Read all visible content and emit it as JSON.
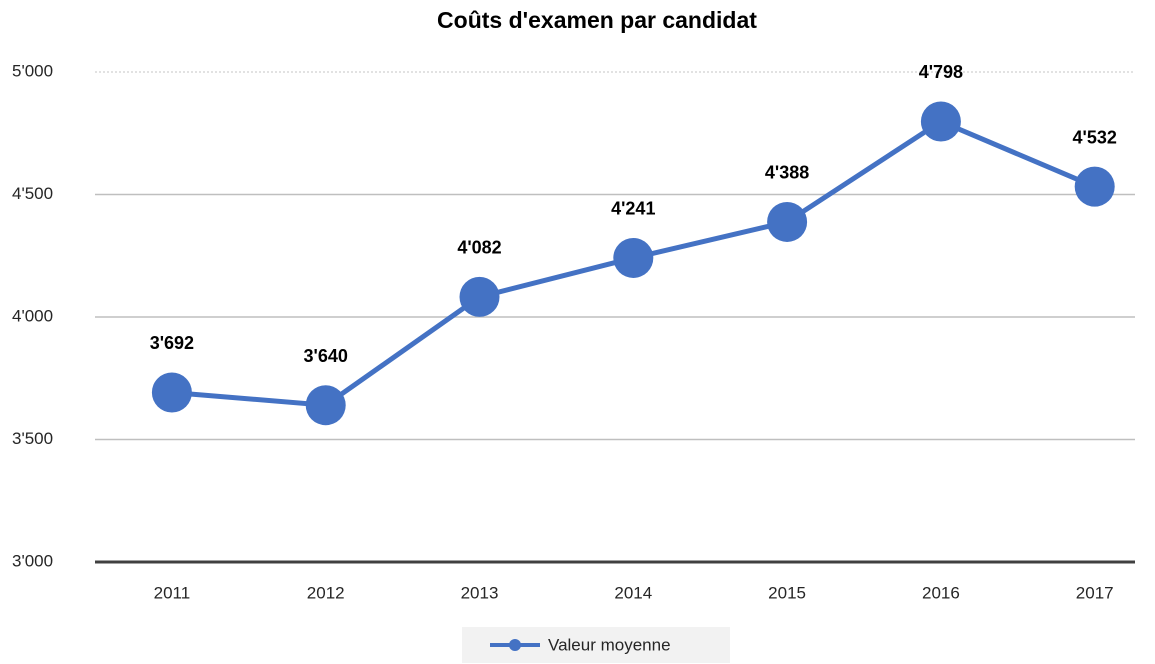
{
  "chart_data": {
    "type": "line",
    "title": "Coûts d'examen par candidat",
    "categories": [
      "2011",
      "2012",
      "2013",
      "2014",
      "2015",
      "2016",
      "2017"
    ],
    "series": [
      {
        "name": "Valeur moyenne",
        "color": "#4472c4",
        "values": [
          3692,
          3640,
          4082,
          4241,
          4388,
          4798,
          4532
        ],
        "value_labels": [
          "3'692",
          "3'640",
          "4'082",
          "4'241",
          "4'388",
          "4'798",
          "4'532"
        ]
      }
    ],
    "ylim": [
      3000,
      5000
    ],
    "yticks": [
      {
        "value": 3000,
        "label": "3'000"
      },
      {
        "value": 3500,
        "label": "3'500"
      },
      {
        "value": 4000,
        "label": "4'000"
      },
      {
        "value": 4500,
        "label": "4'500"
      },
      {
        "value": 5000,
        "label": "5'000"
      }
    ],
    "grid": true,
    "legend": "bottom"
  }
}
